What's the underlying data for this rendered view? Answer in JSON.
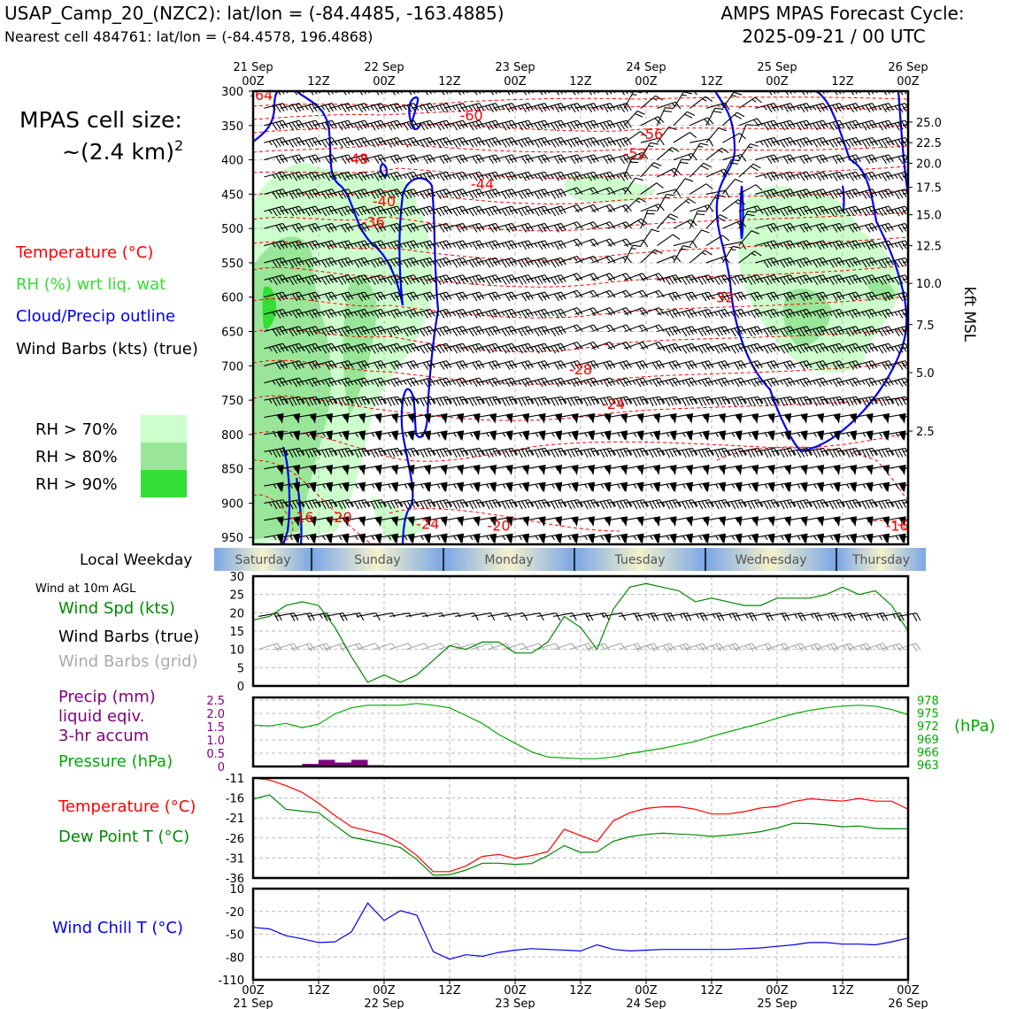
{
  "header": {
    "station": "USAP_Camp_20_(NZC2): lat/lon = (-84.4485, -163.4885)",
    "nearest": "Nearest cell 484761: lat/lon = (-84.4578, 196.4868)",
    "cycle_line1": "AMPS MPAS Forecast Cycle:",
    "cycle_line2": "2025-09-21 / 00 UTC"
  },
  "legend_top": {
    "cell_size_1": "MPAS cell size:",
    "cell_size_2": "~(2.4 km)",
    "cell_size_exp": "2",
    "temperature": "Temperature (°C)",
    "rh": "RH (%) wrt liq. wat",
    "cloud": "Cloud/Precip outline",
    "wind": "Wind Barbs (kts) (true)",
    "rh70": "RH > 70%",
    "rh80": "RH > 80%",
    "rh90": "RH > 90%"
  },
  "colors": {
    "temperature": "#ff0000",
    "rh_label": "#33dd33",
    "cloud": "#0000ee",
    "rh70": "#ccffcc",
    "rh80": "#99e699",
    "rh90": "#33dd33",
    "wind_speed": "#008800",
    "barb_grid": "#aaaaaa",
    "precip": "#800080",
    "pressure": "#00aa00",
    "wind_chill": "#0000ee",
    "weekday_blue": "#7aa6e6",
    "weekday_yellow": "#f5f2cc"
  },
  "time_axis": {
    "top_ticks": [
      {
        "h": "00Z",
        "d": "21 Sep"
      },
      {
        "h": "12Z",
        "d": ""
      },
      {
        "h": "00Z",
        "d": "22 Sep"
      },
      {
        "h": "12Z",
        "d": ""
      },
      {
        "h": "00Z",
        "d": "23 Sep"
      },
      {
        "h": "12Z",
        "d": ""
      },
      {
        "h": "00Z",
        "d": "24 Sep"
      },
      {
        "h": "12Z",
        "d": ""
      },
      {
        "h": "00Z",
        "d": "25 Sep"
      },
      {
        "h": "12Z",
        "d": ""
      },
      {
        "h": "00Z",
        "d": "26 Sep"
      }
    ]
  },
  "weekday": {
    "label": "Local Weekday",
    "days": [
      "Saturday",
      "Sunday",
      "Monday",
      "Tuesday",
      "Wednesday",
      "Thursday"
    ]
  },
  "labels": {
    "kft": "kft MSL",
    "wind_10m": "Wind at 10m AGL",
    "wind_spd": "Wind Spd (kts)",
    "wind_barbs": "Wind Barbs (true)",
    "wind_barbs_grid": "Wind Barbs (grid)",
    "precip_1": "Precip (mm)",
    "precip_2": "liquid eqiv.",
    "precip_3": "3-hr accum",
    "pressure": "Pressure (hPa)",
    "hpa": "(hPa)",
    "temp": "Temperature (°C)",
    "dewpt": "Dew Point T (°C)",
    "windchill": "Wind Chill T (°C)"
  },
  "chart_data": [
    {
      "type": "heatmap",
      "id": "time-height",
      "y_pressure_ticks": [
        300,
        350,
        400,
        450,
        500,
        550,
        600,
        650,
        700,
        750,
        800,
        850,
        900,
        950
      ],
      "ylim": [
        300,
        960
      ],
      "right_kft_ticks": [
        {
          "kft": "25.0",
          "p": 345
        },
        {
          "kft": "22.5",
          "p": 375
        },
        {
          "kft": "20.0",
          "p": 405
        },
        {
          "kft": "17.5",
          "p": 440
        },
        {
          "kft": "15.0",
          "p": 480
        },
        {
          "kft": "12.5",
          "p": 525
        },
        {
          "kft": "10.0",
          "p": 580
        },
        {
          "kft": "7.5",
          "p": 640
        },
        {
          "kft": "5.0",
          "p": 710
        },
        {
          "kft": "2.5",
          "p": 795
        }
      ],
      "temperature_labels": [
        {
          "text": "-64",
          "t": 1.5,
          "p": 305
        },
        {
          "text": "-60",
          "t": 40,
          "p": 335
        },
        {
          "text": "-56",
          "t": 73,
          "p": 362
        },
        {
          "text": "-52",
          "t": 70,
          "p": 390
        },
        {
          "text": "-48",
          "t": 19,
          "p": 398
        },
        {
          "text": "-44",
          "t": 42,
          "p": 435
        },
        {
          "text": "-40",
          "t": 24,
          "p": 460
        },
        {
          "text": "-36",
          "t": 22,
          "p": 490
        },
        {
          "text": "-32",
          "t": 86,
          "p": 600
        },
        {
          "text": "-28",
          "t": 60,
          "p": 705
        },
        {
          "text": "-24",
          "t": 66,
          "p": 755
        },
        {
          "text": "-16",
          "t": 9,
          "p": 920
        },
        {
          "text": "-20",
          "t": 16,
          "p": 920
        },
        {
          "text": "-24",
          "t": 32,
          "p": 930
        },
        {
          "text": "-20",
          "t": 45,
          "p": 932
        },
        {
          "text": "-16",
          "t": 118,
          "p": 932
        }
      ]
    },
    {
      "type": "line",
      "id": "wind-speed",
      "x_hours": [
        0,
        3,
        6,
        9,
        12,
        15,
        18,
        21,
        24,
        27,
        30,
        33,
        36,
        39,
        42,
        45,
        48,
        51,
        54,
        57,
        60,
        63,
        66,
        69,
        72,
        75,
        78,
        81,
        84,
        87,
        90,
        93,
        96,
        99,
        102,
        105,
        108,
        111,
        114,
        117,
        120
      ],
      "series": [
        {
          "name": "Wind Spd (kts)",
          "values": [
            18,
            19,
            22,
            23,
            22,
            16,
            8,
            1,
            3,
            1,
            3,
            7,
            11,
            10,
            12,
            12,
            9,
            9,
            12,
            19,
            16,
            10,
            21,
            27,
            28,
            27,
            26,
            23,
            24,
            23,
            22,
            22,
            24,
            24,
            24,
            25,
            27,
            25,
            26,
            22,
            15
          ]
        }
      ],
      "yticks": [
        0,
        5,
        10,
        15,
        20,
        25,
        30
      ],
      "ylim": [
        0,
        30
      ]
    },
    {
      "type": "bar",
      "id": "precip",
      "x_hours": [
        3,
        6,
        9,
        12,
        15,
        18,
        21,
        24,
        27,
        30,
        33,
        36
      ],
      "values": [
        0,
        0,
        0,
        0.1,
        0.25,
        0.15,
        0.25,
        0.05,
        0,
        0,
        0,
        0
      ],
      "yticks": [
        "0",
        "0.5",
        "1.0",
        "1.5",
        "2.0",
        "2.5"
      ],
      "ylim": [
        0,
        2.6
      ]
    },
    {
      "type": "line",
      "id": "pressure",
      "x_hours": [
        0,
        3,
        6,
        9,
        12,
        15,
        18,
        21,
        24,
        27,
        30,
        33,
        36,
        39,
        42,
        45,
        48,
        51,
        54,
        57,
        60,
        63,
        66,
        69,
        72,
        75,
        78,
        81,
        84,
        87,
        90,
        93,
        96,
        99,
        102,
        105,
        108,
        111,
        114,
        117,
        120
      ],
      "series": [
        {
          "name": "Pressure (hPa)",
          "values": [
            972.2,
            972,
            972.6,
            971.6,
            972.4,
            974.8,
            976.2,
            976.8,
            976.8,
            976.8,
            977.2,
            976.8,
            976.2,
            974.4,
            972.6,
            970,
            968,
            966,
            964.8,
            964.6,
            964.4,
            964.4,
            964.8,
            965.6,
            966.2,
            966.8,
            967.6,
            968.4,
            969.6,
            970.6,
            971.6,
            972.6,
            973.8,
            974.8,
            975.6,
            976.2,
            976.6,
            976.8,
            976.6,
            975.8,
            974.6
          ]
        }
      ],
      "ylim": [
        962.6,
        978.6
      ],
      "yticks": [
        "963",
        "966",
        "969",
        "972",
        "975",
        "978"
      ]
    },
    {
      "type": "line",
      "id": "temp-dewpoint",
      "x_hours": [
        0,
        3,
        6,
        9,
        12,
        15,
        18,
        21,
        24,
        27,
        30,
        33,
        36,
        39,
        42,
        45,
        48,
        51,
        54,
        57,
        60,
        63,
        66,
        69,
        72,
        75,
        78,
        81,
        84,
        87,
        90,
        93,
        96,
        99,
        102,
        105,
        108,
        111,
        114,
        117,
        120
      ],
      "series": [
        {
          "name": "Temperature (°C)",
          "values": [
            -11,
            -11.5,
            -12.9,
            -14.6,
            -17.3,
            -20.4,
            -23.2,
            -24.2,
            -25.2,
            -27.3,
            -30.4,
            -34.4,
            -34.4,
            -33,
            -30.6,
            -30.1,
            -31.1,
            -30.4,
            -29.4,
            -23.8,
            -25.4,
            -26.9,
            -21.7,
            -19.7,
            -18.6,
            -18.2,
            -18.2,
            -18.8,
            -20,
            -20,
            -19.4,
            -18.5,
            -18.1,
            -16.9,
            -16.2,
            -16.5,
            -16.8,
            -16.1,
            -16.8,
            -16.8,
            -18.8
          ]
        },
        {
          "name": "Dew Point T (°C)",
          "values": [
            -16.3,
            -15.2,
            -18.8,
            -19.3,
            -19.7,
            -22.8,
            -25.8,
            -26.6,
            -27.5,
            -28.4,
            -31.4,
            -35.3,
            -35.2,
            -34,
            -32.3,
            -32.3,
            -32.6,
            -32.4,
            -30.4,
            -27.9,
            -29.6,
            -29.5,
            -26.8,
            -25.7,
            -25.1,
            -24.8,
            -25,
            -25.2,
            -25.6,
            -25.3,
            -24.9,
            -24.4,
            -23.5,
            -22.3,
            -22.4,
            -22.7,
            -23.2,
            -23,
            -23.6,
            -23.7,
            -23.7
          ]
        }
      ],
      "ylim": [
        -36,
        -11
      ],
      "yticks": [
        "-11",
        "-16",
        "-21",
        "-26",
        "-31",
        "-36"
      ]
    },
    {
      "type": "line",
      "id": "wind-chill",
      "x_hours": [
        0,
        3,
        6,
        9,
        12,
        15,
        18,
        21,
        24,
        27,
        30,
        33,
        36,
        39,
        42,
        45,
        48,
        51,
        54,
        57,
        60,
        63,
        66,
        69,
        72,
        75,
        78,
        81,
        84,
        87,
        90,
        93,
        96,
        99,
        102,
        105,
        108,
        111,
        114,
        117,
        120
      ],
      "series": [
        {
          "name": "Wind Chill T (°C)",
          "values": [
            -41,
            -43,
            -52,
            -56,
            -61,
            -60,
            -47,
            -9,
            -32,
            -19,
            -25,
            -73,
            -83,
            -77,
            -79,
            -74,
            -71,
            -69,
            -70,
            -71,
            -72,
            -64,
            -70,
            -72,
            -71,
            -70,
            -70,
            -70,
            -70,
            -70,
            -69,
            -68,
            -66,
            -64,
            -61,
            -61,
            -63,
            -63,
            -64,
            -60,
            -55
          ]
        }
      ],
      "ylim": [
        -110,
        10
      ],
      "yticks": [
        "10",
        "-20",
        "-50",
        "-80",
        "-110"
      ]
    }
  ]
}
